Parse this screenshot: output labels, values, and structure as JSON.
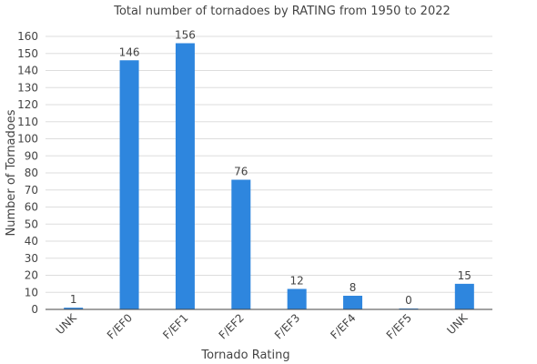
{
  "colors": {
    "bar": "#2e86de",
    "grid": "#dddddd",
    "axis": "#444444",
    "text": "#444444"
  },
  "chart_data": {
    "type": "bar",
    "title": "Total number of tornadoes by RATING from 1950 to 2022",
    "xlabel": "Tornado Rating",
    "ylabel": "Number of Tornadoes",
    "categories": [
      "UNK",
      "F/EF0",
      "F/EF1",
      "F/EF2",
      "F/EF3",
      "F/EF4",
      "F/EF5",
      "UNK"
    ],
    "values": [
      1,
      146,
      156,
      76,
      12,
      8,
      0,
      15
    ],
    "ylim": [
      0,
      160
    ],
    "yticks": [
      0,
      10,
      20,
      30,
      40,
      50,
      60,
      70,
      80,
      90,
      100,
      110,
      120,
      130,
      140,
      150,
      160
    ],
    "grid": true,
    "legend": "none"
  }
}
